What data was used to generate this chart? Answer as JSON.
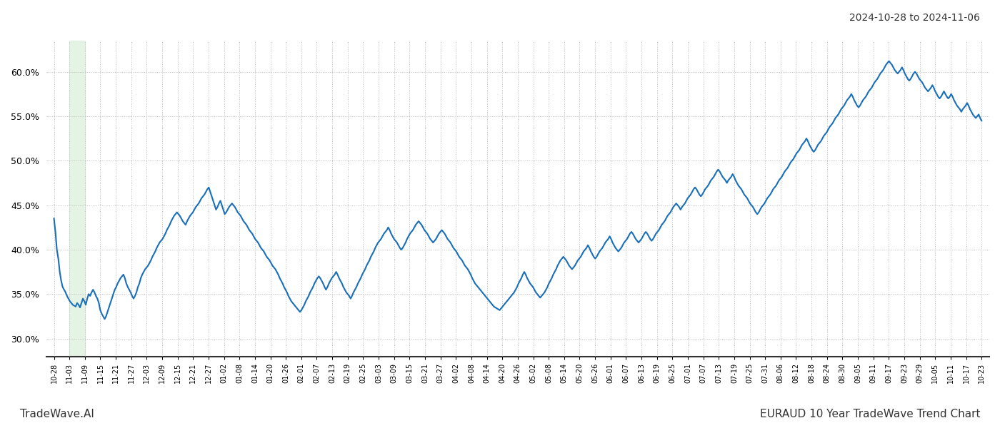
{
  "title_top_right": "2024-10-28 to 2024-11-06",
  "title_bottom_left": "TradeWave.AI",
  "title_bottom_right": "EURAUD 10 Year TradeWave Trend Chart",
  "background_color": "#ffffff",
  "line_color": "#1a6fba",
  "line_width": 1.5,
  "shaded_region_color": "#d4ecd4",
  "shaded_region_alpha": 0.6,
  "ylim": [
    0.28,
    0.635
  ],
  "yticks": [
    0.3,
    0.35,
    0.4,
    0.45,
    0.5,
    0.55,
    0.6
  ],
  "grid_color": "#bbbbbb",
  "grid_linestyle": ":",
  "grid_linewidth": 0.7,
  "x_tick_labels": [
    "10-28",
    "11-03",
    "11-09",
    "11-15",
    "11-21",
    "11-27",
    "12-03",
    "12-09",
    "12-15",
    "12-21",
    "12-27",
    "01-02",
    "01-08",
    "01-14",
    "01-20",
    "01-26",
    "02-01",
    "02-07",
    "02-13",
    "02-19",
    "02-25",
    "03-03",
    "03-09",
    "03-15",
    "03-21",
    "03-27",
    "04-02",
    "04-08",
    "04-14",
    "04-20",
    "04-26",
    "05-02",
    "05-08",
    "05-14",
    "05-20",
    "05-26",
    "06-01",
    "06-07",
    "06-13",
    "06-19",
    "06-25",
    "07-01",
    "07-07",
    "07-13",
    "07-19",
    "07-25",
    "07-31",
    "08-06",
    "08-12",
    "08-18",
    "08-24",
    "08-30",
    "09-05",
    "09-11",
    "09-17",
    "09-23",
    "09-29",
    "10-05",
    "10-11",
    "10-17",
    "10-23"
  ],
  "shaded_x_start_label": "11-03",
  "shaded_x_end_label": "11-09",
  "y_values": [
    0.435,
    0.42,
    0.4,
    0.39,
    0.375,
    0.365,
    0.358,
    0.355,
    0.352,
    0.348,
    0.345,
    0.342,
    0.34,
    0.338,
    0.337,
    0.336,
    0.34,
    0.338,
    0.335,
    0.34,
    0.345,
    0.342,
    0.338,
    0.345,
    0.35,
    0.348,
    0.352,
    0.355,
    0.352,
    0.348,
    0.345,
    0.34,
    0.332,
    0.328,
    0.325,
    0.322,
    0.325,
    0.33,
    0.335,
    0.34,
    0.345,
    0.35,
    0.355,
    0.358,
    0.362,
    0.365,
    0.368,
    0.37,
    0.372,
    0.368,
    0.362,
    0.358,
    0.355,
    0.352,
    0.348,
    0.345,
    0.348,
    0.352,
    0.358,
    0.362,
    0.368,
    0.372,
    0.375,
    0.378,
    0.38,
    0.382,
    0.385,
    0.388,
    0.392,
    0.395,
    0.398,
    0.402,
    0.405,
    0.408,
    0.41,
    0.412,
    0.415,
    0.418,
    0.422,
    0.425,
    0.428,
    0.432,
    0.435,
    0.438,
    0.44,
    0.442,
    0.44,
    0.438,
    0.435,
    0.432,
    0.43,
    0.428,
    0.432,
    0.435,
    0.438,
    0.44,
    0.442,
    0.445,
    0.448,
    0.45,
    0.452,
    0.455,
    0.458,
    0.46,
    0.462,
    0.465,
    0.468,
    0.47,
    0.465,
    0.46,
    0.455,
    0.45,
    0.445,
    0.448,
    0.452,
    0.455,
    0.45,
    0.445,
    0.44,
    0.442,
    0.445,
    0.448,
    0.45,
    0.452,
    0.45,
    0.448,
    0.445,
    0.442,
    0.44,
    0.438,
    0.435,
    0.432,
    0.43,
    0.428,
    0.425,
    0.422,
    0.42,
    0.418,
    0.415,
    0.412,
    0.41,
    0.408,
    0.405,
    0.402,
    0.4,
    0.398,
    0.395,
    0.392,
    0.39,
    0.388,
    0.385,
    0.382,
    0.38,
    0.378,
    0.375,
    0.372,
    0.368,
    0.365,
    0.362,
    0.358,
    0.355,
    0.352,
    0.348,
    0.345,
    0.342,
    0.34,
    0.338,
    0.336,
    0.334,
    0.332,
    0.33,
    0.332,
    0.335,
    0.338,
    0.342,
    0.345,
    0.348,
    0.352,
    0.355,
    0.358,
    0.362,
    0.365,
    0.368,
    0.37,
    0.368,
    0.365,
    0.362,
    0.358,
    0.355,
    0.358,
    0.362,
    0.365,
    0.368,
    0.37,
    0.372,
    0.375,
    0.372,
    0.368,
    0.365,
    0.362,
    0.358,
    0.355,
    0.352,
    0.35,
    0.348,
    0.345,
    0.348,
    0.352,
    0.355,
    0.358,
    0.362,
    0.365,
    0.368,
    0.372,
    0.375,
    0.378,
    0.382,
    0.385,
    0.388,
    0.392,
    0.395,
    0.398,
    0.402,
    0.405,
    0.408,
    0.41,
    0.412,
    0.415,
    0.418,
    0.42,
    0.422,
    0.425,
    0.422,
    0.418,
    0.415,
    0.412,
    0.41,
    0.408,
    0.405,
    0.402,
    0.4,
    0.402,
    0.405,
    0.408,
    0.412,
    0.415,
    0.418,
    0.42,
    0.422,
    0.425,
    0.428,
    0.43,
    0.432,
    0.43,
    0.428,
    0.425,
    0.422,
    0.42,
    0.418,
    0.415,
    0.412,
    0.41,
    0.408,
    0.41,
    0.412,
    0.415,
    0.418,
    0.42,
    0.422,
    0.42,
    0.418,
    0.415,
    0.412,
    0.41,
    0.408,
    0.405,
    0.402,
    0.4,
    0.398,
    0.395,
    0.392,
    0.39,
    0.388,
    0.385,
    0.382,
    0.38,
    0.378,
    0.375,
    0.372,
    0.368,
    0.365,
    0.362,
    0.36,
    0.358,
    0.356,
    0.354,
    0.352,
    0.35,
    0.348,
    0.346,
    0.344,
    0.342,
    0.34,
    0.338,
    0.336,
    0.335,
    0.334,
    0.333,
    0.332,
    0.334,
    0.336,
    0.338,
    0.34,
    0.342,
    0.344,
    0.346,
    0.348,
    0.35,
    0.352,
    0.355,
    0.358,
    0.362,
    0.365,
    0.368,
    0.372,
    0.375,
    0.372,
    0.368,
    0.365,
    0.362,
    0.36,
    0.358,
    0.355,
    0.352,
    0.35,
    0.348,
    0.346,
    0.348,
    0.35,
    0.352,
    0.355,
    0.358,
    0.362,
    0.365,
    0.368,
    0.372,
    0.375,
    0.378,
    0.382,
    0.385,
    0.388,
    0.39,
    0.392,
    0.39,
    0.388,
    0.385,
    0.382,
    0.38,
    0.378,
    0.38,
    0.382,
    0.385,
    0.388,
    0.39,
    0.392,
    0.395,
    0.398,
    0.4,
    0.402,
    0.405,
    0.402,
    0.398,
    0.395,
    0.392,
    0.39,
    0.392,
    0.395,
    0.398,
    0.4,
    0.402,
    0.405,
    0.408,
    0.41,
    0.412,
    0.415,
    0.412,
    0.408,
    0.405,
    0.402,
    0.4,
    0.398,
    0.4,
    0.402,
    0.405,
    0.408,
    0.41,
    0.412,
    0.415,
    0.418,
    0.42,
    0.418,
    0.415,
    0.412,
    0.41,
    0.408,
    0.41,
    0.412,
    0.415,
    0.418,
    0.42,
    0.418,
    0.415,
    0.412,
    0.41,
    0.412,
    0.415,
    0.418,
    0.42,
    0.422,
    0.425,
    0.428,
    0.43,
    0.432,
    0.435,
    0.438,
    0.44,
    0.442,
    0.445,
    0.448,
    0.45,
    0.452,
    0.45,
    0.448,
    0.445,
    0.448,
    0.45,
    0.452,
    0.455,
    0.458,
    0.46,
    0.462,
    0.465,
    0.468,
    0.47,
    0.468,
    0.465,
    0.462,
    0.46,
    0.462,
    0.465,
    0.468,
    0.47,
    0.472,
    0.475,
    0.478,
    0.48,
    0.482,
    0.485,
    0.488,
    0.49,
    0.488,
    0.485,
    0.482,
    0.48,
    0.478,
    0.475,
    0.478,
    0.48,
    0.482,
    0.485,
    0.482,
    0.478,
    0.475,
    0.472,
    0.47,
    0.468,
    0.465,
    0.462,
    0.46,
    0.458,
    0.455,
    0.452,
    0.45,
    0.448,
    0.445,
    0.442,
    0.44,
    0.442,
    0.445,
    0.448,
    0.45,
    0.452,
    0.455,
    0.458,
    0.46,
    0.462,
    0.465,
    0.468,
    0.47,
    0.472,
    0.475,
    0.478,
    0.48,
    0.482,
    0.485,
    0.488,
    0.49,
    0.492,
    0.495,
    0.498,
    0.5,
    0.502,
    0.505,
    0.508,
    0.51,
    0.512,
    0.515,
    0.518,
    0.52,
    0.522,
    0.525,
    0.522,
    0.518,
    0.515,
    0.512,
    0.51,
    0.512,
    0.515,
    0.518,
    0.52,
    0.522,
    0.525,
    0.528,
    0.53,
    0.532,
    0.535,
    0.538,
    0.54,
    0.542,
    0.545,
    0.548,
    0.55,
    0.552,
    0.555,
    0.558,
    0.56,
    0.562,
    0.565,
    0.568,
    0.57,
    0.572,
    0.575,
    0.572,
    0.568,
    0.565,
    0.562,
    0.56,
    0.562,
    0.565,
    0.568,
    0.57,
    0.572,
    0.575,
    0.578,
    0.58,
    0.582,
    0.585,
    0.588,
    0.59,
    0.592,
    0.595,
    0.598,
    0.6,
    0.602,
    0.605,
    0.608,
    0.61,
    0.612,
    0.61,
    0.608,
    0.605,
    0.602,
    0.6,
    0.598,
    0.6,
    0.602,
    0.605,
    0.602,
    0.598,
    0.595,
    0.592,
    0.59,
    0.592,
    0.595,
    0.598,
    0.6,
    0.598,
    0.595,
    0.592,
    0.59,
    0.588,
    0.585,
    0.582,
    0.58,
    0.578,
    0.58,
    0.582,
    0.585,
    0.582,
    0.578,
    0.575,
    0.572,
    0.57,
    0.572,
    0.575,
    0.578,
    0.575,
    0.572,
    0.57,
    0.572,
    0.575,
    0.572,
    0.568,
    0.565,
    0.562,
    0.56,
    0.558,
    0.555,
    0.558,
    0.56,
    0.562,
    0.565,
    0.562,
    0.558,
    0.555,
    0.552,
    0.55,
    0.548,
    0.55,
    0.552,
    0.548,
    0.545
  ]
}
